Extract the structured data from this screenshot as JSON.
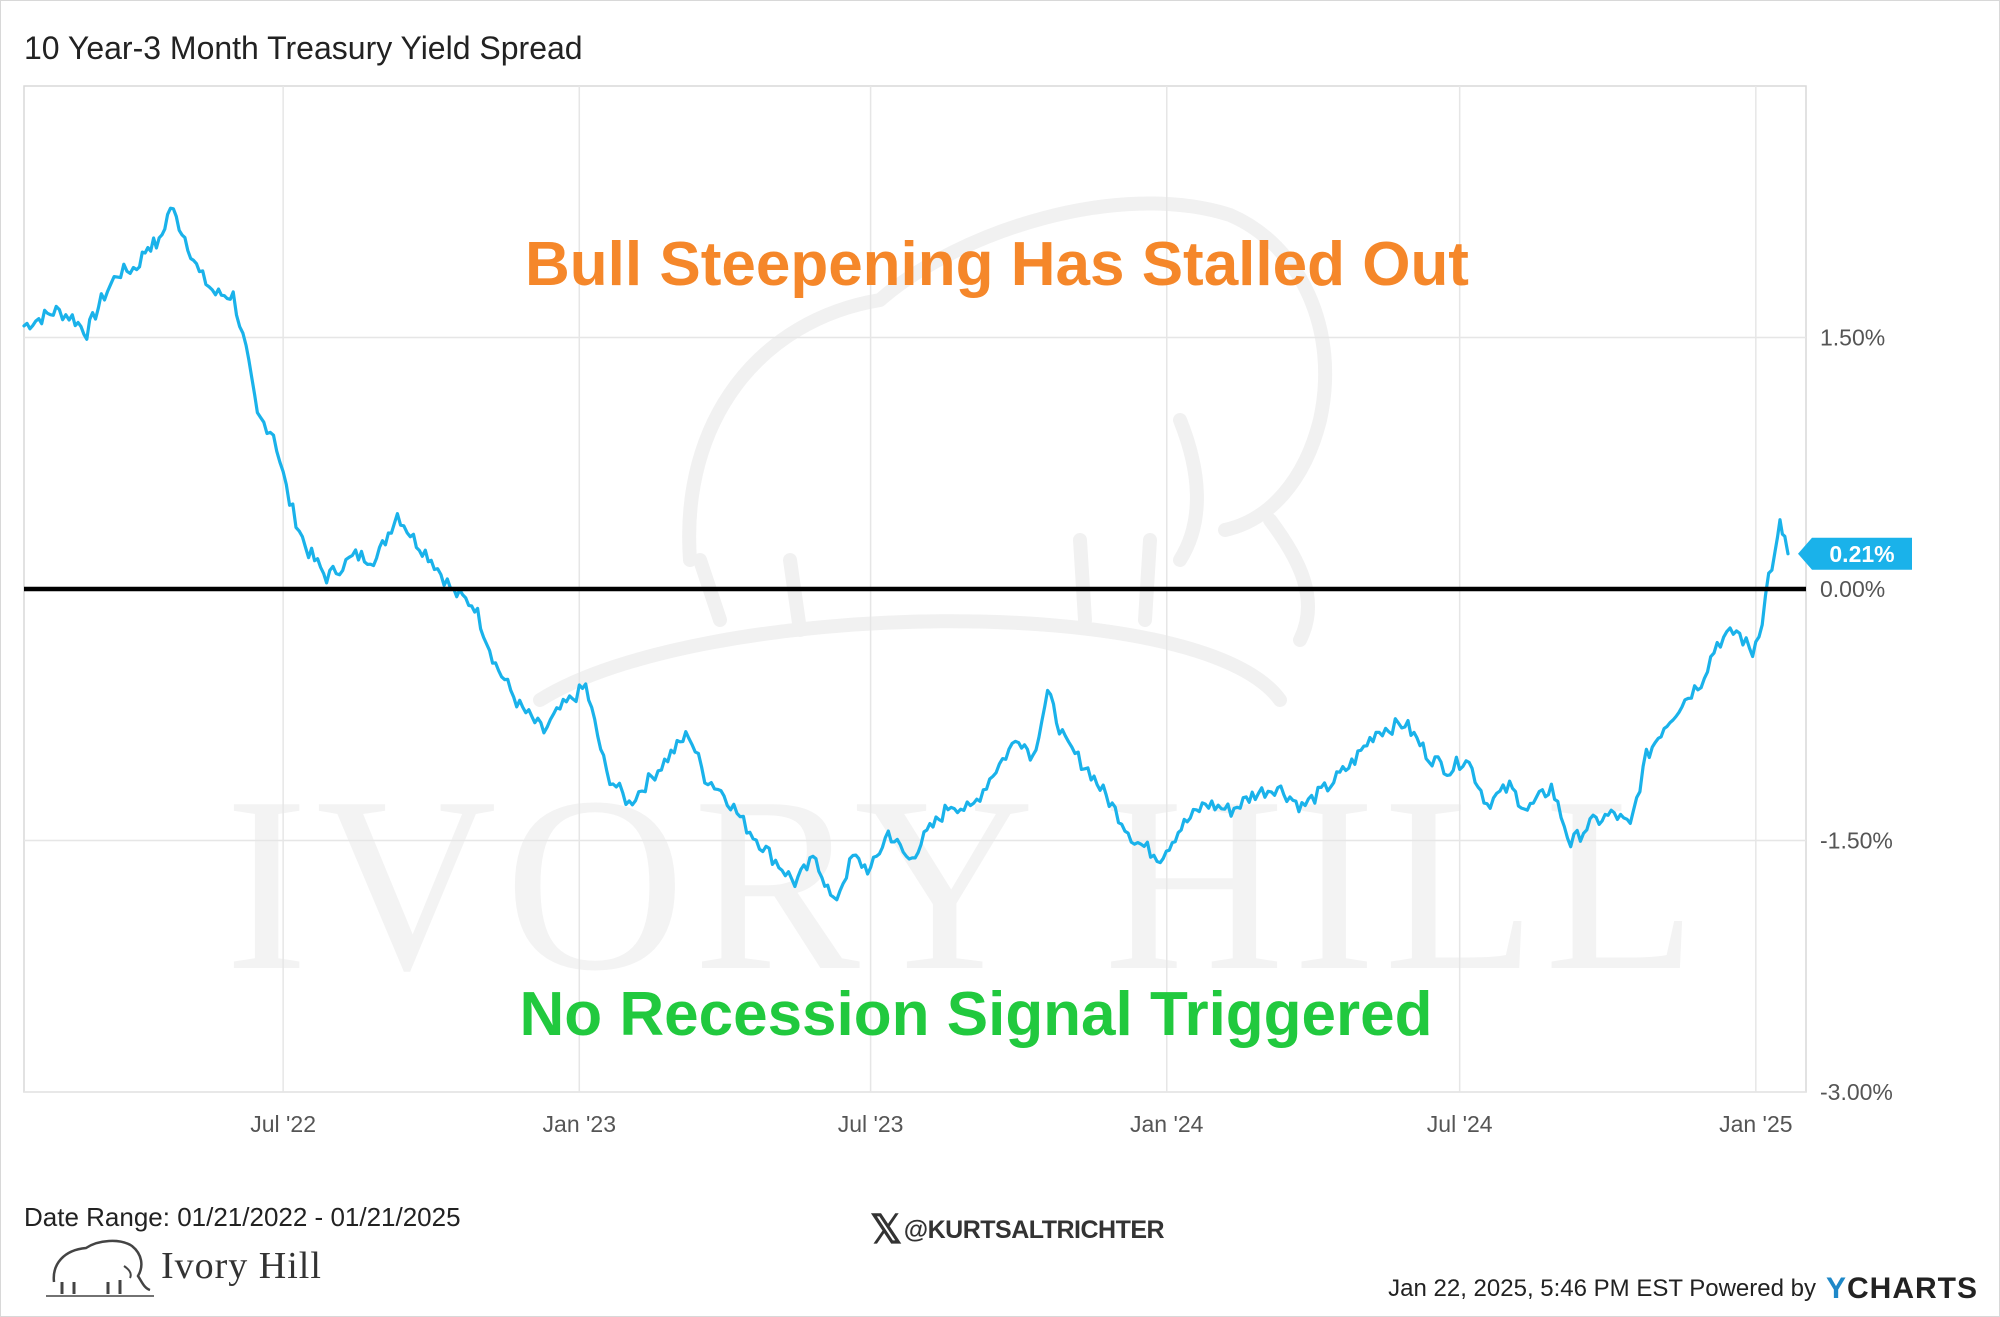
{
  "colors": {
    "line": "#1ab2ea",
    "zero_line": "#000000",
    "annotation_top": "#f5872a",
    "annotation_bottom": "#21c93e",
    "grid": "#e6e6e6",
    "watermark": "#f3f3f3",
    "ycharts_brand": "#1e88c8"
  },
  "chart_data": {
    "type": "line",
    "title": "10 Year-3 Month Treasury Yield Spread",
    "x_ticks": [
      "Jul '22",
      "Jan '23",
      "Jul '23",
      "Jan '24",
      "Jul '24",
      "Jan '25"
    ],
    "y_ticks": [
      "1.50%",
      "0.00%",
      "-1.50%",
      "-3.00%"
    ],
    "x_range": [
      "2022-01-21",
      "2025-01-21"
    ],
    "ylim": [
      -3.0,
      3.0
    ],
    "grid": true,
    "zero_line": 0.0,
    "last_value_label": "0.21%",
    "series": [
      {
        "points": [
          [
            "2022-01-21",
            1.57
          ],
          [
            "2022-02-01",
            1.62
          ],
          [
            "2022-02-10",
            1.66
          ],
          [
            "2022-02-20",
            1.62
          ],
          [
            "2022-03-01",
            1.53
          ],
          [
            "2022-03-10",
            1.72
          ],
          [
            "2022-03-20",
            1.88
          ],
          [
            "2022-04-01",
            1.92
          ],
          [
            "2022-04-08",
            2.05
          ],
          [
            "2022-04-15",
            2.06
          ],
          [
            "2022-04-22",
            2.28
          ],
          [
            "2022-05-01",
            2.1
          ],
          [
            "2022-05-10",
            1.88
          ],
          [
            "2022-05-20",
            1.76
          ],
          [
            "2022-05-31",
            1.75
          ],
          [
            "2022-06-08",
            1.42
          ],
          [
            "2022-06-15",
            1.03
          ],
          [
            "2022-06-25",
            0.93
          ],
          [
            "2022-07-05",
            0.52
          ],
          [
            "2022-07-15",
            0.25
          ],
          [
            "2022-07-28",
            0.07
          ],
          [
            "2022-08-15",
            0.2
          ],
          [
            "2022-08-28",
            0.18
          ],
          [
            "2022-09-10",
            0.45
          ],
          [
            "2022-09-20",
            0.3
          ],
          [
            "2022-10-01",
            0.18
          ],
          [
            "2022-10-15",
            -0.02
          ],
          [
            "2022-10-28",
            -0.1
          ],
          [
            "2022-11-10",
            -0.45
          ],
          [
            "2022-11-25",
            -0.7
          ],
          [
            "2022-12-10",
            -0.85
          ],
          [
            "2022-12-20",
            -0.72
          ],
          [
            "2023-01-05",
            -0.58
          ],
          [
            "2023-01-18",
            -1.1
          ],
          [
            "2023-02-01",
            -1.28
          ],
          [
            "2023-02-15",
            -1.12
          ],
          [
            "2023-03-01",
            -0.96
          ],
          [
            "2023-03-10",
            -0.86
          ],
          [
            "2023-03-20",
            -1.12
          ],
          [
            "2023-04-01",
            -1.22
          ],
          [
            "2023-04-15",
            -1.42
          ],
          [
            "2023-05-01",
            -1.6
          ],
          [
            "2023-05-15",
            -1.75
          ],
          [
            "2023-05-28",
            -1.6
          ],
          [
            "2023-06-08",
            -1.88
          ],
          [
            "2023-06-20",
            -1.6
          ],
          [
            "2023-07-01",
            -1.68
          ],
          [
            "2023-07-12",
            -1.45
          ],
          [
            "2023-07-25",
            -1.62
          ],
          [
            "2023-08-05",
            -1.46
          ],
          [
            "2023-08-20",
            -1.28
          ],
          [
            "2023-09-01",
            -1.32
          ],
          [
            "2023-09-15",
            -1.1
          ],
          [
            "2023-10-01",
            -0.88
          ],
          [
            "2023-10-10",
            -1.0
          ],
          [
            "2023-10-19",
            -0.62
          ],
          [
            "2023-10-30",
            -0.92
          ],
          [
            "2023-11-15",
            -1.1
          ],
          [
            "2023-11-30",
            -1.32
          ],
          [
            "2023-12-12",
            -1.5
          ],
          [
            "2023-12-28",
            -1.6
          ],
          [
            "2024-01-10",
            -1.42
          ],
          [
            "2024-01-25",
            -1.28
          ],
          [
            "2024-02-10",
            -1.32
          ],
          [
            "2024-02-25",
            -1.22
          ],
          [
            "2024-03-10",
            -1.18
          ],
          [
            "2024-03-25",
            -1.3
          ],
          [
            "2024-04-10",
            -1.18
          ],
          [
            "2024-04-25",
            -1.04
          ],
          [
            "2024-05-10",
            -0.85
          ],
          [
            "2024-05-28",
            -0.8
          ],
          [
            "2024-06-12",
            -1.0
          ],
          [
            "2024-06-25",
            -1.08
          ],
          [
            "2024-07-05",
            -1.0
          ],
          [
            "2024-07-18",
            -1.28
          ],
          [
            "2024-08-01",
            -1.18
          ],
          [
            "2024-08-12",
            -1.32
          ],
          [
            "2024-08-27",
            -1.18
          ],
          [
            "2024-09-08",
            -1.52
          ],
          [
            "2024-09-20",
            -1.4
          ],
          [
            "2024-10-05",
            -1.34
          ],
          [
            "2024-10-15",
            -1.42
          ],
          [
            "2024-10-25",
            -1.0
          ],
          [
            "2024-11-05",
            -0.82
          ],
          [
            "2024-11-18",
            -0.66
          ],
          [
            "2024-11-28",
            -0.55
          ],
          [
            "2024-12-08",
            -0.32
          ],
          [
            "2024-12-20",
            -0.25
          ],
          [
            "2024-12-30",
            -0.38
          ],
          [
            "2025-01-05",
            -0.18
          ],
          [
            "2025-01-09",
            0.08
          ],
          [
            "2025-01-13",
            0.2
          ],
          [
            "2025-01-16",
            0.38
          ],
          [
            "2025-01-19",
            0.3
          ],
          [
            "2025-01-21",
            0.21
          ]
        ]
      }
    ],
    "annotations": [
      {
        "text": "Bull Steepening Has Stalled Out",
        "color_key": "annotation_top"
      },
      {
        "text": "No Recession Signal Triggered",
        "color_key": "annotation_bottom"
      }
    ]
  },
  "watermark": {
    "word": "IVORY HILL"
  },
  "footer": {
    "date_range": "Date Range: 01/21/2022 - 01/21/2025",
    "logo_text": "Ivory Hill",
    "handle": "@KURTSALTRICHTER",
    "handle_icon": "x-logo-icon",
    "timestamp": "Jan 22, 2025, 5:46 PM EST Powered by",
    "brand_y": "Y",
    "brand_rest": "CHARTS"
  }
}
